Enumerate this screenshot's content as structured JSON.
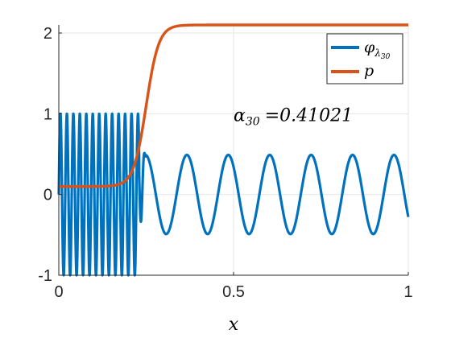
{
  "chart_data": {
    "type": "line",
    "xlabel": "x",
    "xlim": [
      0,
      1
    ],
    "ylim": [
      -1,
      2.1
    ],
    "xticks": [
      0,
      0.5,
      1
    ],
    "xtick_labels": [
      "0",
      "0.5",
      "1"
    ],
    "yticks": [
      -1,
      0,
      1,
      2
    ],
    "ytick_labels": [
      "-1",
      "0",
      "1",
      "2"
    ],
    "grid": true,
    "legend_position": "top-right",
    "series": [
      {
        "name": "φ_λ30",
        "legend_main": "φ",
        "legend_sub1": "λ",
        "legend_sub2": "30",
        "color": "#0072BD",
        "style": "oscillation",
        "low_region": [
          0,
          0.23
        ],
        "low_amplitude": 1.0,
        "low_period": 0.0185,
        "high_amplitude": 0.49,
        "high_period": 0.1185,
        "peak_x": 0.248
      },
      {
        "name": "p",
        "legend_main": "p",
        "color": "#D95319",
        "style": "sigmoid",
        "low": 0.1,
        "high": 2.1,
        "mid_x": 0.25,
        "steepness": 0.018
      }
    ],
    "annotation": {
      "alpha_symbol": "α",
      "alpha_sub": "30",
      "value_text": "=0.41021",
      "x": 0.5,
      "y": 0.98
    }
  }
}
